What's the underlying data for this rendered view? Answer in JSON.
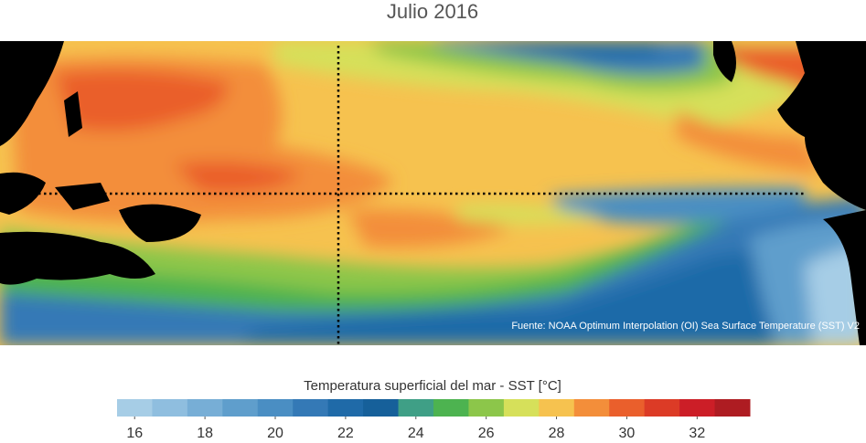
{
  "title": "Julio 2016",
  "source": "Fuente: NOAA Optimum Interpolation (OI) Sea Surface Temperature (SST) V2",
  "colorbar": {
    "label": "Temperatura superficial del mar - SST  [°C]",
    "colors": [
      "#a6cde6",
      "#8fbedf",
      "#77aed6",
      "#5f9ecc",
      "#4a8ec3",
      "#3479b6",
      "#1f6aa8",
      "#16609a",
      "#3f9f86",
      "#4db350",
      "#8cc64a",
      "#d6e05a",
      "#f6c24f",
      "#f38e3a",
      "#ea5f2c",
      "#dc3b26",
      "#cc1e27",
      "#ae1c22"
    ],
    "lim": [
      15.5,
      33.5
    ],
    "ticks": [
      16,
      18,
      20,
      22,
      24,
      26,
      28,
      30,
      32
    ]
  }
}
